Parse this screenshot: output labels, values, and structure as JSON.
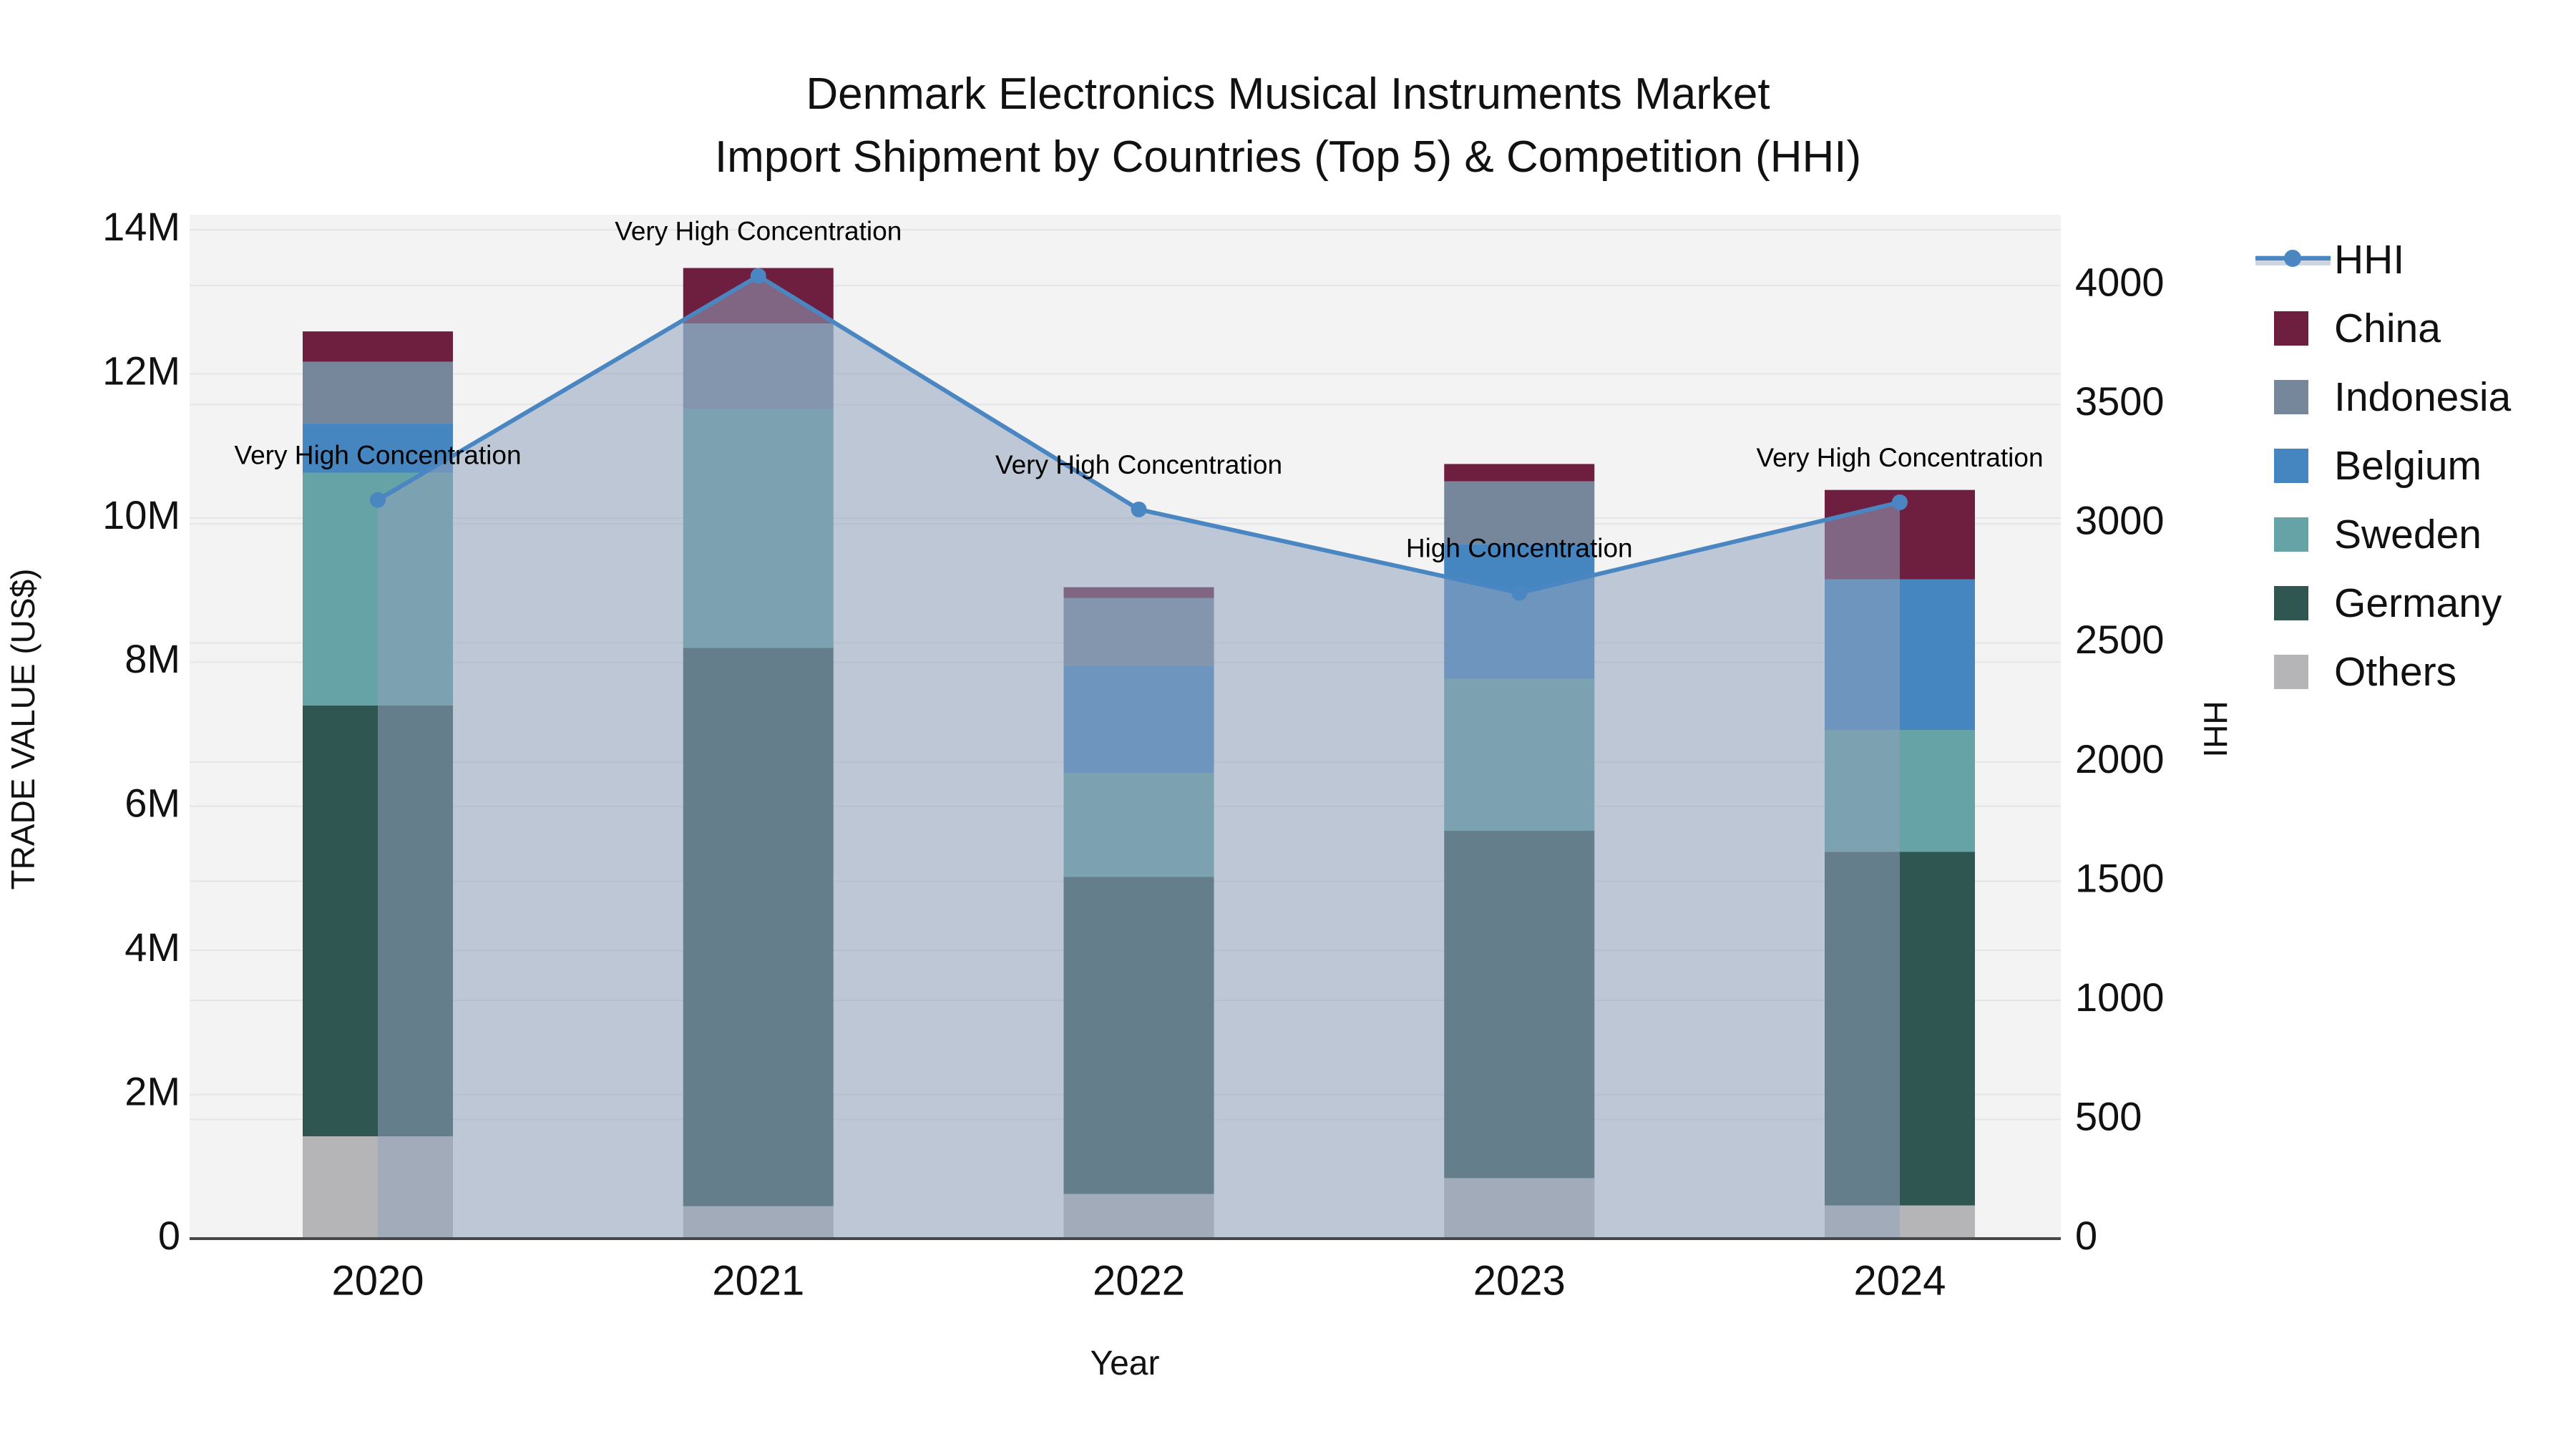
{
  "title": {
    "line1": "Denmark Electronics Musical Instruments Market",
    "line2": "Import Shipment by Countries (Top 5) & Competition (HHI)"
  },
  "chart_data": {
    "type": "bar",
    "subtype": "stacked bars with HHI line+area on secondary axis",
    "categories": [
      "2020",
      "2021",
      "2022",
      "2023",
      "2024"
    ],
    "values_units": "US$ millions",
    "series": [
      {
        "name": "China",
        "color": "#6e1e3f",
        "values": [
          0.42,
          0.77,
          0.15,
          0.24,
          1.24
        ]
      },
      {
        "name": "Indonesia",
        "color": "#76879b",
        "values": [
          0.86,
          1.19,
          0.94,
          0.87,
          0.0
        ]
      },
      {
        "name": "Belgium",
        "color": "#4585c0",
        "values": [
          0.68,
          0.0,
          1.49,
          1.87,
          2.09
        ]
      },
      {
        "name": "Sweden",
        "color": "#65a3a6",
        "values": [
          3.23,
          3.31,
          1.44,
          2.11,
          1.69
        ]
      },
      {
        "name": "Germany",
        "color": "#2f5650",
        "values": [
          5.98,
          7.75,
          4.4,
          4.82,
          4.91
        ]
      },
      {
        "name": "Others",
        "color": "#b5b5b7",
        "values": [
          1.42,
          0.45,
          0.62,
          0.84,
          0.46
        ]
      }
    ],
    "stack_order_bottom_to_top": [
      "Others",
      "Germany",
      "Sweden",
      "Belgium",
      "Indonesia",
      "China"
    ],
    "bar_totals_musd": [
      12.59,
      13.47,
      9.04,
      10.75,
      10.39
    ],
    "hhi_series": {
      "name": "HHI",
      "values": [
        3100,
        4040,
        3060,
        2710,
        3090
      ],
      "line_color": "#4a86c2",
      "marker": "circle",
      "area_fill_color": "#8fa2bb",
      "area_fill_opacity": 0.55
    },
    "annotations": [
      {
        "category": "2020",
        "label": "Very High Concentration"
      },
      {
        "category": "2021",
        "label": "Very High Concentration"
      },
      {
        "category": "2022",
        "label": "Very High Concentration"
      },
      {
        "category": "2023",
        "label": "High Concentration"
      },
      {
        "category": "2024",
        "label": "Very High Concentration"
      }
    ],
    "x_axis": {
      "title": "Year",
      "tick_labels": [
        "2020",
        "2021",
        "2022",
        "2023",
        "2024"
      ]
    },
    "y_axis_left": {
      "title": "TRADE VALUE (US$)",
      "tick_labels": [
        "0",
        "2M",
        "4M",
        "6M",
        "8M",
        "10M",
        "12M",
        "14M"
      ],
      "tick_values_musd": [
        0,
        2,
        4,
        6,
        8,
        10,
        12,
        14
      ],
      "range_max_musd": 14.21
    },
    "y_axis_right": {
      "title": "HHI",
      "tick_labels": [
        "0",
        "500",
        "1000",
        "1500",
        "2000",
        "2500",
        "3000",
        "3500",
        "4000"
      ],
      "tick_values": [
        0,
        500,
        1000,
        1500,
        2000,
        2500,
        3000,
        3500,
        4000
      ],
      "range_max": 4297
    },
    "grid": true,
    "legend": {
      "position": "right",
      "items": [
        "HHI",
        "China",
        "Indonesia",
        "Belgium",
        "Sweden",
        "Germany",
        "Others"
      ]
    },
    "colors": {
      "plot_background": "#f3f3f4",
      "gridline": "#e4e5e7",
      "axis_line": "#474747",
      "text": "#111111"
    }
  }
}
